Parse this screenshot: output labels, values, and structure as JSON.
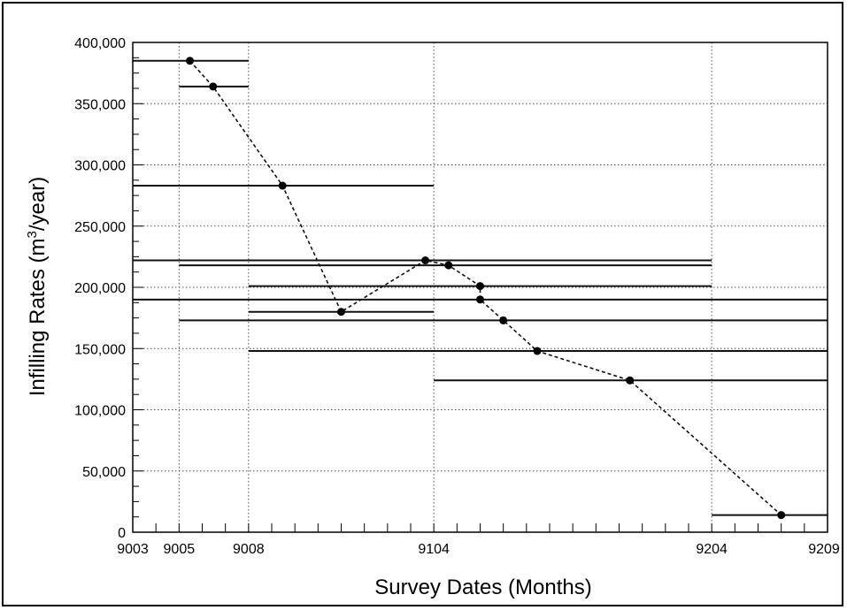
{
  "chart_data": {
    "type": "line",
    "xlabel": "Survey Dates (Months)",
    "ylabel_main": "Infilling Rates (m",
    "ylabel_sup": "3",
    "ylabel_end": "/year)",
    "x_unit": "months",
    "xlim": [
      "1990-03",
      "1992-09"
    ],
    "ylim": [
      0,
      400000
    ],
    "x_tick_labels": [
      {
        "label": "9003",
        "x": "1990-03"
      },
      {
        "label": "9005",
        "x": "1990-05"
      },
      {
        "label": "9008",
        "x": "1990-08"
      },
      {
        "label": "9104",
        "x": "1991-04"
      },
      {
        "label": "9204",
        "x": "1992-04"
      },
      {
        "label": "9209",
        "x": "1992-09"
      }
    ],
    "y_ticks": [
      0,
      50000,
      100000,
      150000,
      200000,
      250000,
      300000,
      350000,
      400000
    ],
    "y_tick_labels": [
      "0",
      "50,000",
      "100,000",
      "150,000",
      "200,000",
      "250,000",
      "300,000",
      "350,000",
      "400,000"
    ],
    "grid": true,
    "interval_series": [
      {
        "start": "1990-03",
        "end": "1990-08",
        "value": 385000
      },
      {
        "start": "1990-05",
        "end": "1990-08",
        "value": 364000
      },
      {
        "start": "1990-03",
        "end": "1991-04",
        "value": 283000
      },
      {
        "start": "1990-03",
        "end": "1992-04",
        "value": 222000
      },
      {
        "start": "1990-05",
        "end": "1992-04",
        "value": 218000
      },
      {
        "start": "1990-08",
        "end": "1992-04",
        "value": 201000
      },
      {
        "start": "1990-03",
        "end": "1992-09",
        "value": 190000
      },
      {
        "start": "1990-08",
        "end": "1991-04",
        "value": 180000
      },
      {
        "start": "1990-05",
        "end": "1992-09",
        "value": 173000
      },
      {
        "start": "1990-08",
        "end": "1992-09",
        "value": 148000
      },
      {
        "start": "1991-04",
        "end": "1992-09",
        "value": 124000
      },
      {
        "start": "1992-04",
        "end": "1992-09",
        "value": 14000
      }
    ],
    "midpoint_series": [
      {
        "x": "1990-05-15",
        "y": 385000
      },
      {
        "x": "1990-06-15",
        "y": 364000
      },
      {
        "x": "1990-09-15",
        "y": 283000
      },
      {
        "x": "1990-12-01",
        "y": 180000
      },
      {
        "x": "1991-03-20",
        "y": 222000
      },
      {
        "x": "1991-04-20",
        "y": 218000
      },
      {
        "x": "1991-06-01",
        "y": 201000
      },
      {
        "x": "1991-06-01",
        "y": 190000
      },
      {
        "x": "1991-07-01",
        "y": 173000
      },
      {
        "x": "1991-08-15",
        "y": 148000
      },
      {
        "x": "1991-12-15",
        "y": 124000
      },
      {
        "x": "1992-07-01",
        "y": 14000
      }
    ]
  }
}
